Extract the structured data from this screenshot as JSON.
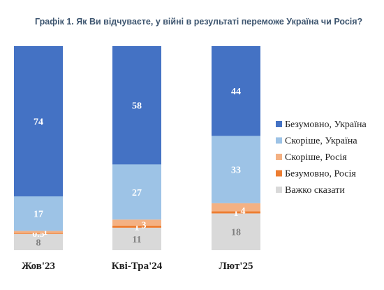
{
  "chart_data": {
    "type": "bar",
    "stacked": true,
    "title": "Графік 1. Як Ви відчуваєте, у війні в результаті переможе Україна чи Росія?",
    "categories": [
      "Жов'23",
      "Кві-Тра'24",
      "Лют'25"
    ],
    "series": [
      {
        "name": "Важко сказати",
        "values": [
          8,
          11,
          18
        ],
        "value_labels": [
          "8",
          "11",
          "18"
        ],
        "color": "#d9d9d9",
        "label_color": "#7f7f7f"
      },
      {
        "name": "Безумовно, Росія",
        "values": [
          0.5,
          1,
          1
        ],
        "value_labels": [
          "0.5",
          "1",
          "1"
        ],
        "color": "#ed7d31",
        "label_color": "#ffffff"
      },
      {
        "name": "Скоріше, Росія",
        "values": [
          1,
          3,
          4
        ],
        "value_labels": [
          "1",
          "3",
          "4"
        ],
        "color": "#f4b183",
        "label_color": "#ffffff"
      },
      {
        "name": "Скоріше, Україна",
        "values": [
          17,
          27,
          33
        ],
        "value_labels": [
          "17",
          "27",
          "33"
        ],
        "color": "#9dc3e6",
        "label_color": "#ffffff"
      },
      {
        "name": "Безумовно, Україна",
        "values": [
          74,
          58,
          44
        ],
        "value_labels": [
          "74",
          "58",
          "44"
        ],
        "color": "#4472c4",
        "label_color": "#ffffff"
      }
    ],
    "ylim": [
      0,
      100
    ],
    "grid": false,
    "legend": {
      "position": "right",
      "order": [
        "Безумовно, Україна",
        "Скоріше, Україна",
        "Скоріше, Росія",
        "Безумовно, Росія",
        "Важко сказати"
      ]
    }
  }
}
